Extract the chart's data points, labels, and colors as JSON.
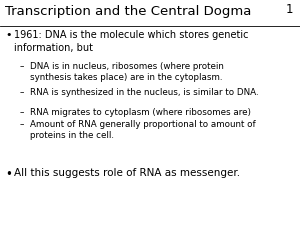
{
  "title": "Transcription and the Central Dogma",
  "slide_number": "1",
  "background_color": "#ffffff",
  "title_fontsize": 9.5,
  "body_fontsize": 7.0,
  "sub_fontsize": 6.3,
  "bullet2_fontsize": 7.5,
  "bullet1": "1961: DNA is the molecule which stores genetic\ninformation, but",
  "sub_bullets": [
    "DNA is in nucleus, ribosomes (where protein\nsynthesis takes place) are in the cytoplasm.",
    "RNA is synthesized in the nucleus, is similar to DNA.",
    "RNA migrates to cytoplasm (where ribosomes are)",
    "Amount of RNA generally proportional to amount of\nproteins in the cell."
  ],
  "bullet2": "All this suggests role of RNA as messenger."
}
